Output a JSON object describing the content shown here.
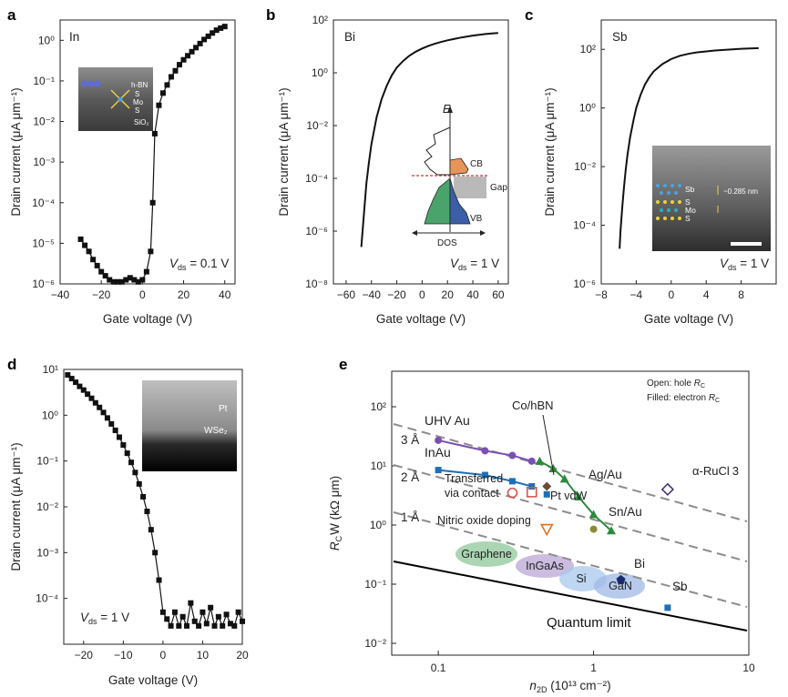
{
  "panel_labels": [
    "a",
    "b",
    "c",
    "d",
    "e"
  ],
  "chart_data": [
    {
      "id": "a",
      "type": "scatter",
      "title": "In",
      "xlabel": "Gate voltage (V)",
      "ylabel": "Drain current (μA μm⁻¹)",
      "xlim": [
        -40,
        45
      ],
      "ylim_log10": [
        -6,
        0.5
      ],
      "xticks": [
        "−40",
        "−20",
        "0",
        "20",
        "40"
      ],
      "yticks": [
        "10⁻⁶",
        "10⁻⁵",
        "10⁻⁴",
        "10⁻³",
        "10⁻²",
        "10⁻¹",
        "10⁰"
      ],
      "annotation": "V_ds = 0.1 V",
      "vds_label": "V",
      "vds_sub": "ds",
      "vds_value": " = 0.1 V",
      "inset_labels": [
        "h-BN",
        "S",
        "Mo",
        "S",
        "SiO₂"
      ],
      "x": [
        -30,
        -28,
        -26,
        -24,
        -22,
        -20,
        -18,
        -16,
        -14,
        -12,
        -10,
        -8,
        -6,
        -4,
        -2,
        0,
        2,
        4,
        5,
        6,
        8,
        10,
        12,
        14,
        16,
        18,
        20,
        22,
        24,
        26,
        28,
        30,
        32,
        34,
        36,
        38,
        40
      ],
      "log_y": [
        -4.9,
        -5.05,
        -5.2,
        -5.4,
        -5.55,
        -5.7,
        -5.8,
        -5.9,
        -5.95,
        -5.95,
        -5.95,
        -5.9,
        -5.85,
        -5.9,
        -5.95,
        -5.9,
        -5.7,
        -5.2,
        -4.0,
        -2.3,
        -1.6,
        -1.3,
        -1.1,
        -0.9,
        -0.75,
        -0.6,
        -0.48,
        -0.38,
        -0.28,
        -0.18,
        -0.08,
        0.02,
        0.1,
        0.18,
        0.25,
        0.3,
        0.34
      ]
    },
    {
      "id": "b",
      "type": "line",
      "title": "Bi",
      "xlabel": "Gate voltage (V)",
      "ylabel": "Drain current (μA μm⁻¹)",
      "xlim": [
        -70,
        68
      ],
      "ylim_log10": [
        -8,
        2
      ],
      "xticks": [
        "−60",
        "−40",
        "−20",
        "0",
        "20",
        "40",
        "60"
      ],
      "yticks": [
        "10⁻⁸",
        "10⁻⁶",
        "10⁻⁴",
        "10⁻²",
        "10⁰",
        "10²"
      ],
      "annotation": "V_ds = 1 V",
      "vds_label": "V",
      "vds_sub": "ds",
      "vds_value": " = 1 V",
      "inset_labels": {
        "energy": "E",
        "cb": "CB",
        "gap": "Gap",
        "vb": "VB",
        "dos": "DOS"
      },
      "x": [
        -48,
        -47,
        -46,
        -45,
        -44,
        -42,
        -40,
        -36,
        -32,
        -28,
        -24,
        -20,
        -15,
        -10,
        -5,
        0,
        5,
        10,
        15,
        20,
        25,
        30,
        35,
        40,
        45,
        50,
        55,
        60
      ],
      "log_y": [
        -6.6,
        -6.0,
        -5.4,
        -4.8,
        -4.2,
        -3.4,
        -2.7,
        -1.7,
        -1.0,
        -0.5,
        -0.1,
        0.2,
        0.45,
        0.65,
        0.8,
        0.92,
        1.02,
        1.1,
        1.17,
        1.23,
        1.28,
        1.33,
        1.37,
        1.41,
        1.44,
        1.47,
        1.49,
        1.51
      ]
    },
    {
      "id": "c",
      "type": "line",
      "title": "Sb",
      "xlabel": "Gate voltage (V)",
      "ylabel": "Drain current (μA μm⁻¹)",
      "xlim": [
        -8,
        12
      ],
      "ylim_log10": [
        -6,
        3
      ],
      "xticks": [
        "−8",
        "−4",
        "0",
        "4",
        "8"
      ],
      "yticks": [
        "10⁻⁶",
        "10⁻⁴",
        "10⁻²",
        "10⁰",
        "10²"
      ],
      "annotation": "V_ds = 1 V",
      "vds_label": "V",
      "vds_sub": "ds",
      "vds_value": " = 1 V",
      "inset_labels": [
        "Sb",
        "S",
        "Mo",
        "S",
        "~0.285 nm"
      ],
      "x": [
        -5.9,
        -5.8,
        -5.6,
        -5.4,
        -5.2,
        -5.0,
        -4.7,
        -4.3,
        -4.0,
        -3.5,
        -3.0,
        -2.5,
        -2,
        -1,
        0,
        1,
        2,
        3,
        4,
        5,
        6,
        7,
        8,
        9,
        10
      ],
      "log_y": [
        -4.8,
        -4.2,
        -3.4,
        -2.7,
        -2.1,
        -1.6,
        -1.0,
        -0.4,
        0.0,
        0.45,
        0.8,
        1.05,
        1.25,
        1.5,
        1.67,
        1.78,
        1.85,
        1.9,
        1.93,
        1.96,
        1.98,
        2.0,
        2.02,
        2.03,
        2.04
      ]
    },
    {
      "id": "d",
      "type": "scatter",
      "title": "",
      "xlabel": "Gate voltage (V)",
      "ylabel": "Drain current (μA μm⁻¹)",
      "xlim": [
        -25,
        20
      ],
      "ylim_log10": [
        -5,
        1
      ],
      "xticks": [
        "−20",
        "−10",
        "0",
        "10",
        "20"
      ],
      "yticks": [
        "10⁻⁴",
        "10⁻²",
        "10⁰",
        "10¹",
        "10⁻³",
        "10⁻¹"
      ],
      "yticks_ordered": [
        "10¹",
        "10⁰",
        "10⁻¹",
        "10⁻²",
        "10⁻³",
        "10⁻⁴"
      ],
      "annotation": "V_ds = 1 V",
      "vds_label": "V",
      "vds_sub": "ds",
      "vds_value": " = 1 V",
      "inset_labels": [
        "Pt",
        "WSe₂"
      ],
      "x": [
        -24,
        -23,
        -22,
        -21,
        -20,
        -19,
        -18,
        -17,
        -16,
        -15,
        -14,
        -13,
        -12,
        -11,
        -10,
        -9,
        -8,
        -7,
        -6,
        -5,
        -4,
        -3,
        -2,
        -1,
        0,
        1,
        2,
        3,
        4,
        5,
        6,
        7,
        8,
        9,
        10,
        11,
        12,
        13,
        14,
        15,
        16,
        17,
        18,
        19,
        20
      ],
      "log_y": [
        0.88,
        0.8,
        0.72,
        0.63,
        0.55,
        0.46,
        0.37,
        0.27,
        0.17,
        0.06,
        -0.06,
        -0.19,
        -0.33,
        -0.48,
        -0.65,
        -0.83,
        -1.03,
        -1.25,
        -1.5,
        -1.78,
        -2.1,
        -2.5,
        -3.0,
        -3.6,
        -4.3,
        -4.45,
        -4.6,
        -4.3,
        -4.6,
        -4.4,
        -4.6,
        -4.1,
        -4.5,
        -4.6,
        -4.3,
        -4.55,
        -4.2,
        -4.6,
        -4.4,
        -4.6,
        -4.35,
        -4.55,
        -4.6,
        -4.3,
        -4.5
      ]
    },
    {
      "id": "e",
      "type": "scatter",
      "title": "",
      "xlabel": "n₂D (10¹³ cm⁻²)",
      "xlabel_main": "n",
      "xlabel_sub": "2D",
      "xlabel_rest": " (10¹³ cm⁻²)",
      "ylabel": "R_C W (kΩ μm)",
      "ylabel_main": "R",
      "ylabel_sub": "C",
      "ylabel_rest": "W (kΩ μm)",
      "xlim_log10": [
        -1.3,
        1
      ],
      "ylim_log10": [
        -2.2,
        2.6
      ],
      "xticks": [
        "0.1",
        "1",
        "10"
      ],
      "yticks": [
        "10⁻²",
        "10⁻¹",
        "10⁰",
        "10¹",
        "10²"
      ],
      "legend": [
        "Open: hole R_C",
        "Filled: electron R_C"
      ],
      "legend_lines": [
        {
          "text": "Open: hole ",
          "main": "R",
          "sub": "C"
        },
        {
          "text": "Filled: electron ",
          "main": "R",
          "sub": "C"
        }
      ],
      "dashed_lines": [
        {
          "label": "3 Å"
        },
        {
          "label": "2 Å"
        },
        {
          "label": "1 Å"
        }
      ],
      "quantum_limit": "Quantum limit",
      "series": [
        {
          "name": "UHV Au",
          "color": "#7a4fb5",
          "x": [
            0.1,
            0.2,
            0.3,
            0.4
          ],
          "y": [
            27,
            18,
            15,
            12
          ]
        },
        {
          "name": "InAu",
          "color": "#1e6fb8",
          "x": [
            0.1,
            0.2,
            0.3,
            0.4
          ],
          "y": [
            8.5,
            7,
            5.5,
            4.5
          ]
        },
        {
          "name": "Ag/Au",
          "color": "#2d8a3e",
          "x": [
            0.45,
            0.55,
            0.65,
            0.8,
            1.0,
            1.3
          ],
          "y": [
            12,
            9,
            6,
            3,
            1.5,
            0.8
          ]
        },
        {
          "name": "Co/hBN",
          "color": "#6b4a3a",
          "x": [
            0.5
          ],
          "y": [
            4.5
          ]
        },
        {
          "name": "Transferred via contact",
          "color": "#d9534f",
          "x": [
            0.3,
            0.4
          ],
          "y": [
            3.5,
            3.6
          ]
        },
        {
          "name": "Pt vdW",
          "color": "#1e6fb8",
          "x": [
            0.5
          ],
          "y": [
            3.3
          ]
        },
        {
          "name": "Sn/Au",
          "color": "#8a8a3a",
          "x": [
            1.0
          ],
          "y": [
            0.85
          ]
        },
        {
          "name": "Nitric oxide doping",
          "color": "#e07020",
          "x": [
            0.5
          ],
          "y": [
            0.85
          ]
        },
        {
          "name": "α-RuCl₃",
          "color": "#3a2a6a",
          "x": [
            3.0
          ],
          "y": [
            4.0
          ]
        },
        {
          "name": "Bi",
          "color": "#1a2a6a",
          "x": [
            1.5
          ],
          "y": [
            0.12
          ]
        },
        {
          "name": "Sb",
          "color": "#1e6fb8",
          "x": [
            3.0
          ],
          "y": [
            0.04
          ]
        }
      ],
      "regions": [
        "Graphene",
        "InGaAs",
        "Si",
        "GaN"
      ],
      "labels": {
        "uhv": "UHV Au",
        "inau": "InAu",
        "cohbn": "Co/hBN",
        "agau": "Ag/Au",
        "transferred1": "Transferred",
        "transferred2": "via contact",
        "ptvdw": "Pt vdW",
        "snau": "Sn/Au",
        "nitric": "Nitric oxide doping",
        "rucl": "α-RuCl",
        "rucl_sub": "3",
        "bi": "Bi",
        "sb": "Sb"
      }
    }
  ],
  "colors": {
    "marker": "#111111",
    "cb": "#e8935a",
    "vb_green": "#4aa36a",
    "vb_blue": "#3c5ea8",
    "gap": "#b9b9b9",
    "fermi": "#d93030",
    "graphene": "#8fc79a",
    "ingaas": "#b9a6d6",
    "si": "#a8c8ec",
    "gan": "#9fb8e6"
  }
}
